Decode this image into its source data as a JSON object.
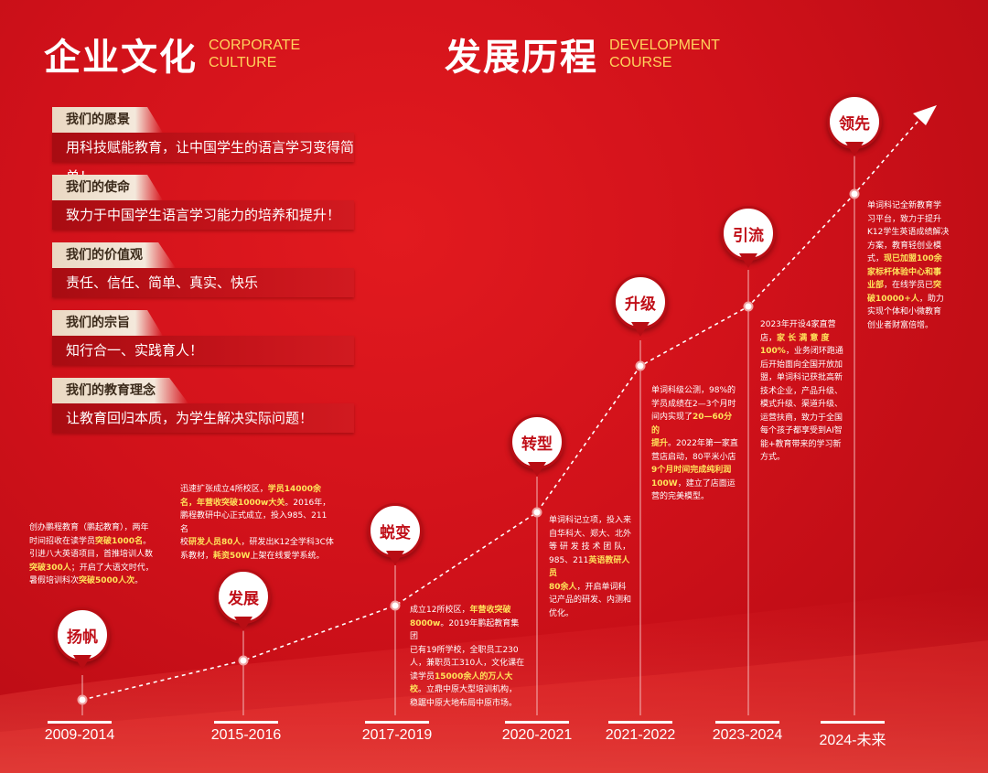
{
  "culture": {
    "title": "企业文化",
    "en1": "CORPORATE",
    "en2": "CULTURE"
  },
  "development": {
    "title": "发展历程",
    "en1": "DEVELOPMENT",
    "en2": "COURSE"
  },
  "values": [
    {
      "label": "我们的愿景",
      "text": "用科技赋能教育，让中国学生的语言学习变得简单！"
    },
    {
      "label": "我们的使命",
      "text": "致力于中国学生语言学习能力的培养和提升！"
    },
    {
      "label": "我们的价值观",
      "text": "责任、信任、简单、真实、快乐"
    },
    {
      "label": "我们的宗旨",
      "text": "知行合一、实践育人！"
    },
    {
      "label": "我们的教育理念",
      "text": "让教育回归本质，为学生解决实际问题！"
    }
  ],
  "stages": [
    {
      "name": "扬帆",
      "year": "2009-2014",
      "desc": [
        [
          {
            "t": "创办鹏程教育（鹏起教育），两年"
          }
        ],
        [
          {
            "t": "时间招收在读学员"
          },
          {
            "t": "突破1000名",
            "h": true
          },
          {
            "t": "。"
          }
        ],
        [
          {
            "t": "引进八大英语项目，首推培训人数"
          }
        ],
        [
          {
            "t": "突破300人",
            "h": true
          },
          {
            "t": "；开启了大语文时代，"
          }
        ],
        [
          {
            "t": "暑假培训科次"
          },
          {
            "t": "突破5000人次",
            "h": true
          },
          {
            "t": "。"
          }
        ]
      ]
    },
    {
      "name": "发展",
      "year": "2015-2016",
      "desc": [
        [
          {
            "t": "迅速扩张成立4所校区，"
          },
          {
            "t": "学员14000余",
            "h": true
          }
        ],
        [
          {
            "t": "名，年营收突破1000w大关",
            "h": true
          },
          {
            "t": "。2016年，"
          }
        ],
        [
          {
            "t": "鹏程教研中心正式成立，投入985、211名"
          }
        ],
        [
          {
            "t": "校"
          },
          {
            "t": "研发人员80人",
            "h": true
          },
          {
            "t": "，研发出K12全学科3C体"
          }
        ],
        [
          {
            "t": "系教材，"
          },
          {
            "t": "耗资50W",
            "h": true
          },
          {
            "t": "上架在线爱学系统。"
          }
        ]
      ]
    },
    {
      "name": "蜕变",
      "year": "2017-2019",
      "desc": [
        [
          {
            "t": "成立12所校区，"
          },
          {
            "t": "年营收突破",
            "h": true
          }
        ],
        [
          {
            "t": "8000w",
            "h": true
          },
          {
            "t": "。2019年鹏起教育集团"
          }
        ],
        [
          {
            "t": "已有19所学校，全职员工230"
          }
        ],
        [
          {
            "t": "人，兼职员工310人，文化课在"
          }
        ],
        [
          {
            "t": "读学员"
          },
          {
            "t": "15000余人的万人大",
            "h": true
          }
        ],
        [
          {
            "t": "校",
            "h": true
          },
          {
            "t": "。立鼎中原大型培训机构，"
          }
        ],
        [
          {
            "t": "稳踞中原大地布局中原市场。"
          }
        ]
      ]
    },
    {
      "name": "转型",
      "year": "2020-2021",
      "desc": [
        [
          {
            "t": "单词科记立项，投入来"
          }
        ],
        [
          {
            "t": "自华科大、郑大、北外"
          }
        ],
        [
          {
            "t": "等 研 发 技 术 团 队，"
          }
        ],
        [
          {
            "t": "985、211"
          },
          {
            "t": "英语教研人员",
            "h": true
          }
        ],
        [
          {
            "t": "80余人",
            "h": true
          },
          {
            "t": "，开启单词科"
          }
        ],
        [
          {
            "t": "记产品的研发、内测和"
          }
        ],
        [
          {
            "t": "优化。"
          }
        ]
      ]
    },
    {
      "name": "升级",
      "year": "2021-2022",
      "desc": [
        [
          {
            "t": "单词科级公测，98%的"
          }
        ],
        [
          {
            "t": "学员成绩在2—3个月时"
          }
        ],
        [
          {
            "t": "间内实现了"
          },
          {
            "t": "20—60分的",
            "h": true
          }
        ],
        [
          {
            "t": "提升",
            "h": true
          },
          {
            "t": "。2022年第一家直"
          }
        ],
        [
          {
            "t": "营店启动，80平米小店"
          }
        ],
        [
          {
            "t": "9个月时间完成纯利润",
            "h": true
          }
        ],
        [
          {
            "t": "100W",
            "h": true
          },
          {
            "t": "，建立了店面运"
          }
        ],
        [
          {
            "t": "营的完美模型。"
          }
        ]
      ]
    },
    {
      "name": "引流",
      "year": "2023-2024",
      "desc": [
        [
          {
            "t": "2023年开设4家直营"
          }
        ],
        [
          {
            "t": "店，"
          },
          {
            "t": "家 长 满 意 度",
            "h": true
          }
        ],
        [
          {
            "t": "100%",
            "h": true
          },
          {
            "t": "，业务闭环跑通"
          }
        ],
        [
          {
            "t": "后开始面向全国开放加"
          }
        ],
        [
          {
            "t": "盟，单词科记获批高新"
          }
        ],
        [
          {
            "t": "技术企业，产品升级、"
          }
        ],
        [
          {
            "t": "模式升级、渠道升级、"
          }
        ],
        [
          {
            "t": "运营扶商，致力于全国"
          }
        ],
        [
          {
            "t": "每个孩子都享受到AI智"
          }
        ],
        [
          {
            "t": "能+教育带来的学习新"
          }
        ],
        [
          {
            "t": "方式。"
          }
        ]
      ]
    },
    {
      "name": "领先",
      "year": "2024-未来",
      "desc": [
        [
          {
            "t": "单词科记全新教育学"
          }
        ],
        [
          {
            "t": "习平台，致力于提升"
          }
        ],
        [
          {
            "t": "K12学生英语成绩解决"
          }
        ],
        [
          {
            "t": "方案，教育轻创业模"
          }
        ],
        [
          {
            "t": "式，"
          },
          {
            "t": "现已加盟100余",
            "h": true
          }
        ],
        [
          {
            "t": "家标杆体验中心和事",
            "h": true
          }
        ],
        [
          {
            "t": "业部",
            "h": true
          },
          {
            "t": "，在线学员已"
          },
          {
            "t": "突",
            "h": true
          }
        ],
        [
          {
            "t": "破10000+人",
            "h": true
          },
          {
            "t": "，助力"
          }
        ],
        [
          {
            "t": "实现个体和小微教育"
          }
        ],
        [
          {
            "t": "创业者财富倍增。"
          }
        ]
      ]
    }
  ],
  "colors": {
    "background": "#d0111a",
    "highlight": "#ffe35a",
    "english_heading": "#ffd35c",
    "label_bg": "#f4e9dc"
  }
}
